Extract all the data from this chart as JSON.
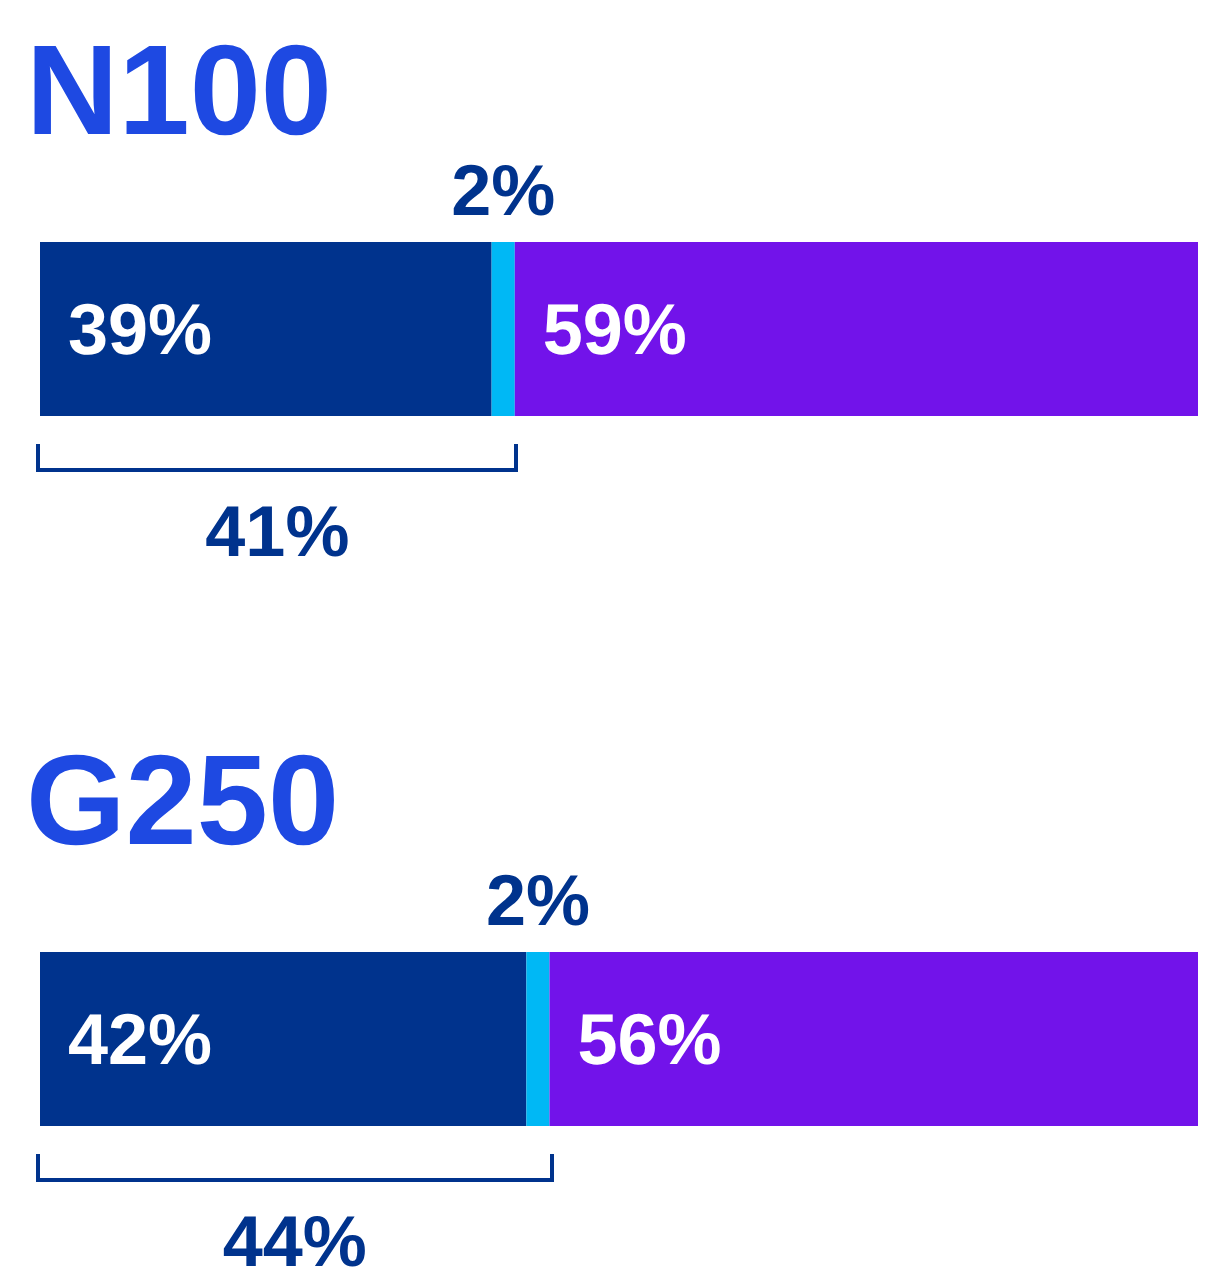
{
  "chart_data": [
    {
      "type": "bar",
      "title": "N100",
      "orientation": "horizontal",
      "stacked": true,
      "categories": [
        null
      ],
      "xlim": [
        0,
        100
      ],
      "tick_labels": false,
      "annotations": [
        "41%"
      ],
      "series": [
        {
          "color": "#00338d",
          "values": [
            39
          ],
          "value_labels": [
            "39%"
          ]
        },
        {
          "color": "#00b8f5",
          "values": [
            2
          ],
          "value_labels": [
            "2%"
          ]
        },
        {
          "color": "#7213ea",
          "values": [
            59
          ],
          "value_labels": [
            "59%"
          ]
        }
      ]
    },
    {
      "type": "bar",
      "title": "G250",
      "orientation": "horizontal",
      "stacked": true,
      "categories": [
        null
      ],
      "xlim": [
        0,
        100
      ],
      "tick_labels": false,
      "annotations": [
        "44%"
      ],
      "series": [
        {
          "color": "#00338d",
          "values": [
            42
          ],
          "value_labels": [
            "42%"
          ]
        },
        {
          "color": "#00b8f5",
          "values": [
            2
          ],
          "value_labels": [
            "2%"
          ]
        },
        {
          "color": "#7213ea",
          "values": [
            56
          ],
          "value_labels": [
            "56%"
          ]
        }
      ]
    }
  ]
}
